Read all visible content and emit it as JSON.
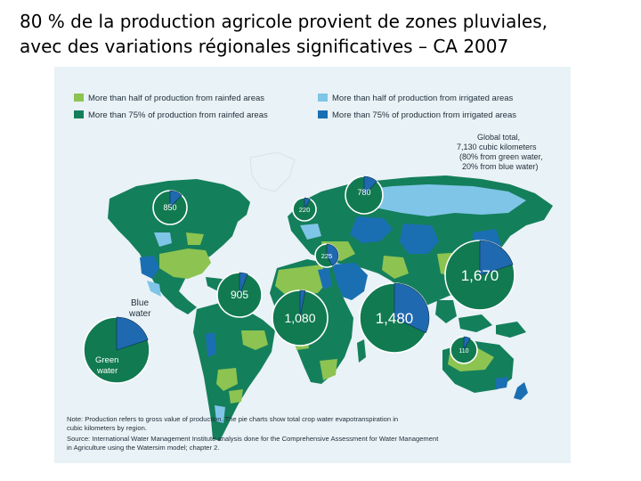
{
  "title": {
    "line1": "80 % de la production agricole provient de zones pluviales,",
    "line2": "avec des variations régionales significatives – CA 2007"
  },
  "colors": {
    "rainfed_half": "#8dc351",
    "rainfed_75": "#147f5b",
    "irrigated_half": "#7fc5e8",
    "irrigated_75": "#1a6fb3",
    "ocean": "#e9f2f6",
    "pie_green": "#117a51",
    "pie_blue": "#1f69b0"
  },
  "legend": {
    "rainfed_half": "More than half of production from rainfed areas",
    "rainfed_75": "More than 75% of production from rainfed areas",
    "irrigated_half": "More than half of production from irrigated areas",
    "irrigated_75": "More than 75% of production from irrigated areas"
  },
  "global_total": {
    "line1": "Global total,",
    "line2": "7,130 cubic kilometers",
    "line3": "(80% from green water,",
    "line4": "20% from blue water)"
  },
  "key_pie": {
    "blue_label_1": "Blue",
    "blue_label_2": "water",
    "green_label_1": "Green",
    "green_label_2": "water",
    "blue_share": 0.2
  },
  "pies": [
    {
      "id": "north-america",
      "label": "850",
      "blue_share": 0.12
    },
    {
      "id": "europe",
      "label": "220",
      "blue_share": 0.08
    },
    {
      "id": "russia-central-asia",
      "label": "780",
      "blue_share": 0.12
    },
    {
      "id": "middle-east",
      "label": "225",
      "blue_share": 0.42
    },
    {
      "id": "latin-america",
      "label": "905",
      "blue_share": 0.06
    },
    {
      "id": "sub-saharan-africa",
      "label": "1,080",
      "blue_share": 0.03
    },
    {
      "id": "south-asia",
      "label": "1,480",
      "blue_share": 0.32
    },
    {
      "id": "east-asia",
      "label": "1,670",
      "blue_share": 0.2
    },
    {
      "id": "oceania",
      "label": "110",
      "blue_share": 0.08
    }
  ],
  "note": {
    "line1": "Note: Production refers to gross value of production. The pie charts show total crop water evapotranspiration in",
    "line2": "cubic kilometers by region.",
    "line3": "Source: International Water Management Institute analysis done for the Comprehensive Assessment for Water Management",
    "line4": "in Agriculture using the Watersim model; chapter 2."
  }
}
